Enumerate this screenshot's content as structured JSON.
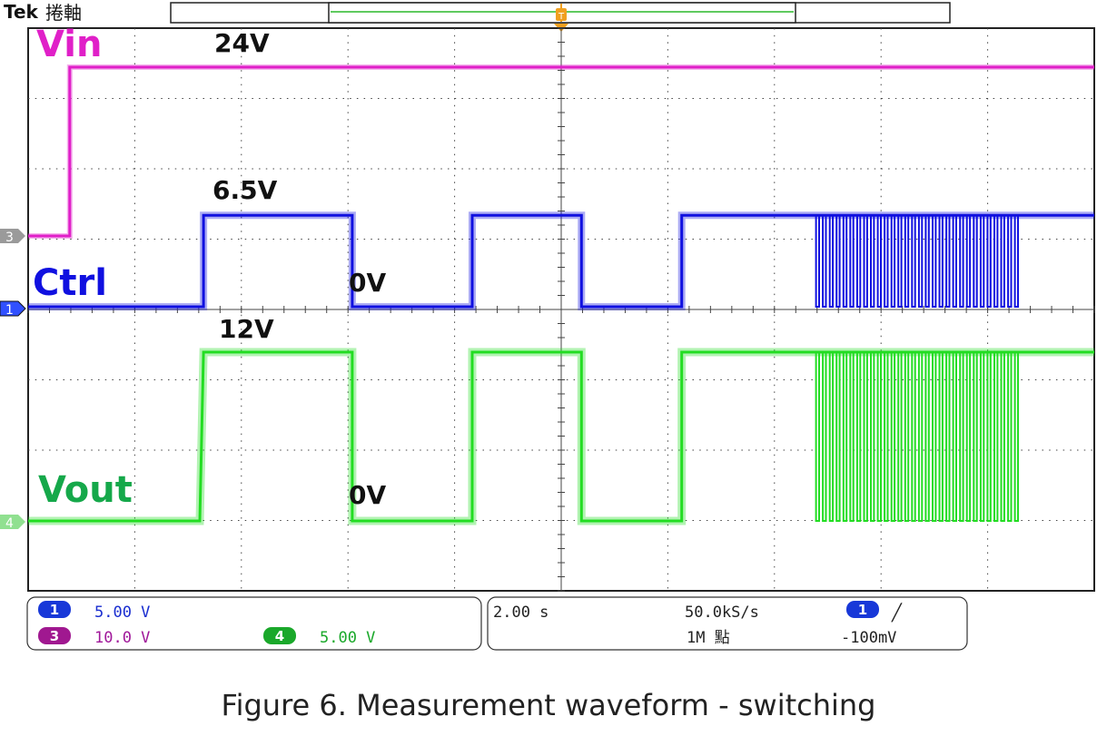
{
  "header": {
    "brand": "Tek",
    "mode": "捲軸"
  },
  "colors": {
    "ch1": "#1010e0",
    "ch3": "#e020c8",
    "ch4": "#22dd22",
    "ch1_badge": "#1838d8",
    "ch3_badge": "#a01890",
    "ch4_badge": "#1aa82a",
    "ch4_label": "#15a84a",
    "trigger": "#f0a020",
    "record": "#2cb82c",
    "grid": "#333333",
    "panel_text_ch1": "#1a2ed0",
    "panel_text_ch3": "#a0189a",
    "panel_text_ch4": "#1aa82a"
  },
  "chart_data": {
    "type": "line",
    "x_unit": "s",
    "time_per_div": 2.0,
    "xlim": [
      0,
      20
    ],
    "grid": true,
    "series": [
      {
        "name": "Vin",
        "channel": "3",
        "scale_per_div": "10.0 V",
        "points": [
          [
            0,
            0
          ],
          [
            0.78,
            0
          ],
          [
            0.78,
            24
          ],
          [
            20,
            24
          ]
        ],
        "level_labels": [
          "24V"
        ]
      },
      {
        "name": "Ctrl",
        "channel": "1",
        "scale_per_div": "5.00 V",
        "points": [
          [
            0,
            0
          ],
          [
            3.29,
            0
          ],
          [
            3.29,
            6.5
          ],
          [
            6.08,
            6.5
          ],
          [
            6.08,
            0
          ],
          [
            8.33,
            0
          ],
          [
            8.33,
            6.5
          ],
          [
            10.38,
            6.5
          ],
          [
            10.38,
            0
          ],
          [
            12.26,
            0
          ],
          [
            12.26,
            6.5
          ],
          [
            14.78,
            6.5
          ],
          [
            18.64,
            6.5
          ],
          [
            20,
            6.5
          ]
        ],
        "burst": {
          "start": 14.78,
          "end": 18.64,
          "pulses": 30,
          "low": 0,
          "high": 6.5
        },
        "level_labels": [
          "6.5V",
          "0V"
        ]
      },
      {
        "name": "Vout",
        "channel": "4",
        "scale_per_div": "5.00 V",
        "points": [
          [
            0,
            0
          ],
          [
            3.22,
            0
          ],
          [
            3.29,
            12
          ],
          [
            6.08,
            12
          ],
          [
            6.08,
            0
          ],
          [
            8.33,
            0
          ],
          [
            8.33,
            12
          ],
          [
            10.38,
            12
          ],
          [
            10.38,
            0
          ],
          [
            12.26,
            0
          ],
          [
            12.26,
            12
          ],
          [
            14.78,
            12
          ],
          [
            18.64,
            12
          ],
          [
            20,
            12
          ]
        ],
        "burst": {
          "start": 14.78,
          "end": 18.64,
          "pulses": 30,
          "low": 0,
          "high": 12
        },
        "level_labels": [
          "12V",
          "0V"
        ]
      }
    ]
  },
  "panel": {
    "ch1": {
      "num": "1",
      "scale": "5.00 V"
    },
    "ch3": {
      "num": "3",
      "scale": "10.0 V"
    },
    "ch4": {
      "num": "4",
      "scale": "5.00 V"
    },
    "timebase": "2.00 s",
    "sample_rate": "50.0kS/s",
    "record_length": "1M 點",
    "trigger": {
      "num": "1",
      "slope": "╱",
      "level": "-100mV"
    }
  },
  "caption": "Figure 6. Measurement waveform - switching"
}
